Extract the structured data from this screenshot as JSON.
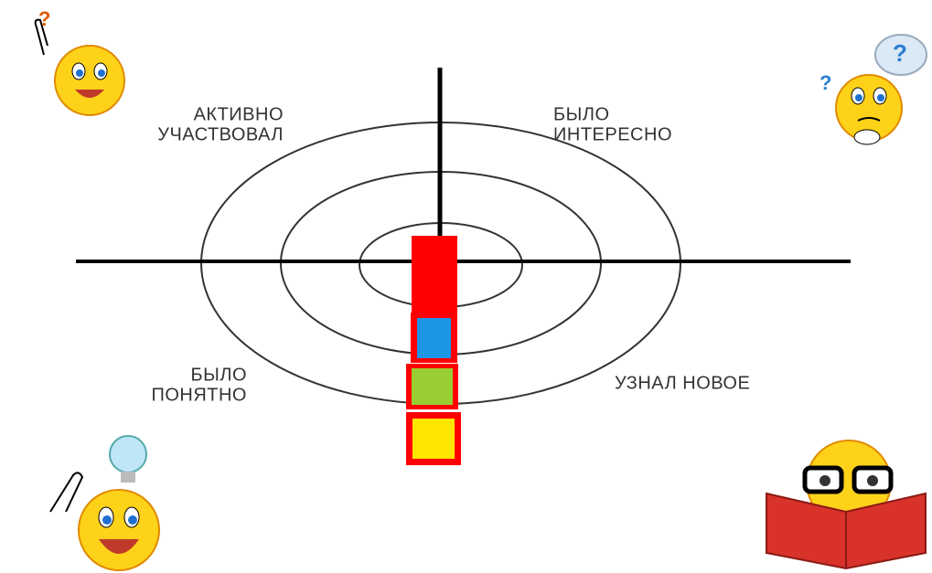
{
  "quadrants": [
    {
      "lines": [
        "АКТИВНО",
        "УЧАСТВОВАЛ"
      ]
    },
    {
      "lines": [
        "БЫЛО",
        "ИНТЕРЕСНО"
      ]
    },
    {
      "lines": [
        "БЫЛО",
        "ПОНЯТНО"
      ]
    },
    {
      "lines": [
        "УЗНАЛ НОВОЕ"
      ]
    }
  ]
}
